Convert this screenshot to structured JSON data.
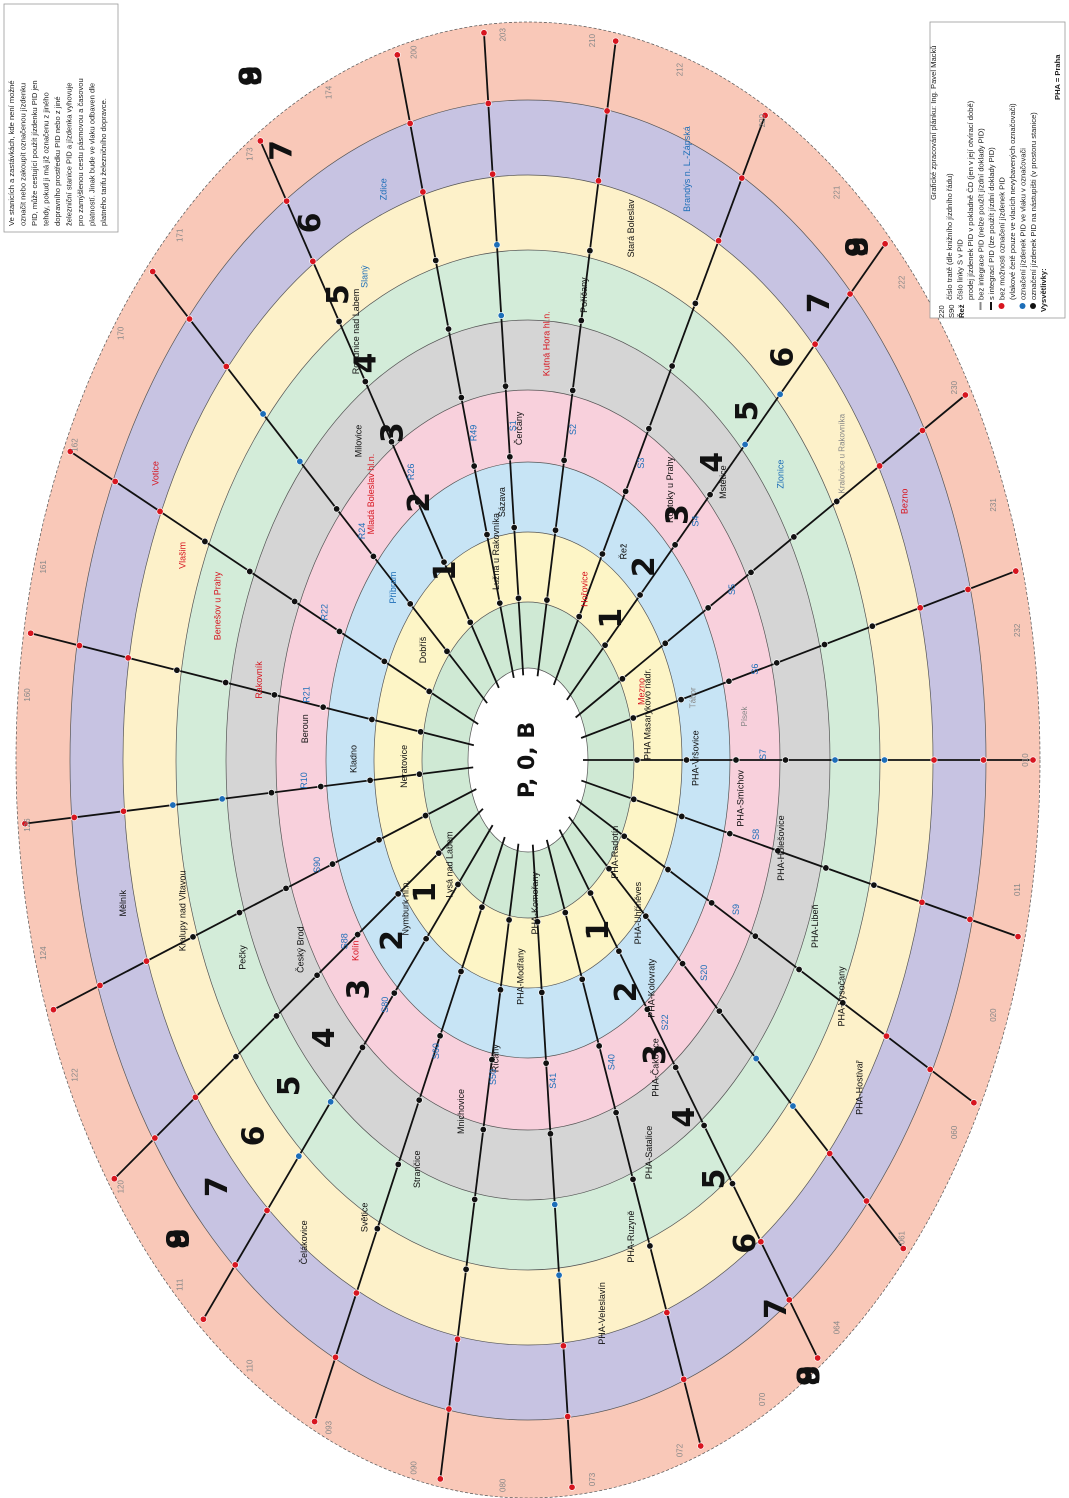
{
  "note_box": {
    "lines": [
      "Ve stanicích a zastávkách, kde není možné",
      "označit nebo zakoupit označenou jízdenku",
      "PID, může cestující použít jízdenku PID jen",
      "tehdy, pokud ji má již označenu z jiného",
      "dopravního prostředku PID nebo z jiné",
      "železniční stanice PID a jízdenka vyhovuje",
      "pro zamýšlenou cestu pásmovou a časovou",
      "platností. Jinak bude ve vlaku odbaven dle",
      "platného tarifu železničního dopravce."
    ]
  },
  "legend": {
    "header": "PHA = Praha",
    "title": "Vysvětlivky:",
    "items": [
      {
        "symbol": "dot-black",
        "text": "označení jízdenek PID na nástupišti (v prostoru stanice)"
      },
      {
        "symbol": "dot-blue",
        "text": "označení jízdenek PID ve vlaku v označovači"
      },
      {
        "symbol": "none",
        "text": "(vlakové četě pouze ve vlacích nevybavených označovači)"
      },
      {
        "symbol": "dot-red",
        "text": "bez možnosti označení jízdenek PID"
      },
      {
        "symbol": "line-black",
        "text": "s integrací PID (lze použít jízdní doklady PID)"
      },
      {
        "symbol": "line-grey",
        "text": "bez integrace PID (nelze použít jízdní doklady PID)"
      },
      {
        "symbol": "text-red",
        "text": "prodej jízdenek PID v pokladně ČD (jen v její otvírací době)"
      },
      {
        "symbol": "text-blue",
        "text": "číslo linky S v PID"
      },
      {
        "symbol": "text-grey",
        "text": "číslo tratě (dle knižního jízdního řádu)"
      }
    ],
    "sample_red": "Řež",
    "sample_blue": "S90",
    "sample_grey": "220",
    "credit": "Grafické zpracování plánku: Ing. Pavel Macků"
  },
  "zones": {
    "center": "P, 0, B",
    "ring_labels": [
      "1",
      "2",
      "3",
      "4",
      "5",
      "6",
      "7",
      "8",
      "9"
    ]
  },
  "colors": {
    "zoneP": "#ffffff",
    "zone0": "#ffffff",
    "zone1": "#cfe9d4",
    "zone2": "#fdf5c6",
    "zone3": "#c7e4f5",
    "zone4": "#f8d0dc",
    "zone5": "#d5d5d5",
    "zone6": "#d3ecd9",
    "zone7": "#fdf1c9",
    "zone8": "#c7c3e2",
    "zone9": "#f9c8b8",
    "red": "#d7151f",
    "blue": "#1d6eb8",
    "black": "#111111",
    "grey": "#888888"
  },
  "stations": [
    {
      "name": "PHA Masarykovo nádr.",
      "color": "black"
    },
    {
      "name": "PHA-Vršovice",
      "color": "black"
    },
    {
      "name": "PHA-Smíchov",
      "color": "black"
    },
    {
      "name": "PHA-Holešovice",
      "color": "black"
    },
    {
      "name": "PHA-Libeň",
      "color": "black"
    },
    {
      "name": "PHA-Vysočany",
      "color": "black"
    },
    {
      "name": "PHA-Hostivař",
      "color": "black"
    },
    {
      "name": "PHA-Radotín",
      "color": "black"
    },
    {
      "name": "PHA-Uhříněves",
      "color": "black"
    },
    {
      "name": "PHA-Kolovraty",
      "color": "black"
    },
    {
      "name": "PHA-Čakovice",
      "color": "black"
    },
    {
      "name": "PHA-Satalice",
      "color": "black"
    },
    {
      "name": "PHA-Ruzyně",
      "color": "black"
    },
    {
      "name": "PHA-Veleslavín",
      "color": "black"
    },
    {
      "name": "PHA-Komořany",
      "color": "black"
    },
    {
      "name": "PHA-Modřany",
      "color": "black"
    },
    {
      "name": "Říčany",
      "color": "black"
    },
    {
      "name": "Mnichovice",
      "color": "black"
    },
    {
      "name": "Strančice",
      "color": "black"
    },
    {
      "name": "Světice",
      "color": "black"
    },
    {
      "name": "Čelákovice",
      "color": "black"
    },
    {
      "name": "Lysá nad Labem",
      "color": "black"
    },
    {
      "name": "Nymburk hl.n.",
      "color": "black"
    },
    {
      "name": "Kolín",
      "color": "red"
    },
    {
      "name": "Český Brod",
      "color": "black"
    },
    {
      "name": "Pečky",
      "color": "black"
    },
    {
      "name": "Kralupy nad Vltavou",
      "color": "black"
    },
    {
      "name": "Mělník",
      "color": "black"
    },
    {
      "name": "Neratovice",
      "color": "black"
    },
    {
      "name": "Kladno",
      "color": "black"
    },
    {
      "name": "Beroun",
      "color": "black"
    },
    {
      "name": "Rakovník",
      "color": "red"
    },
    {
      "name": "Benešov u Prahy",
      "color": "red"
    },
    {
      "name": "Vlašim",
      "color": "red"
    },
    {
      "name": "Votice",
      "color": "red"
    },
    {
      "name": "Dobříš",
      "color": "black"
    },
    {
      "name": "Příbram",
      "color": "blue"
    },
    {
      "name": "Mladá Boleslav hl.n.",
      "color": "red"
    },
    {
      "name": "Milovice",
      "color": "black"
    },
    {
      "name": "Roudnice nad Labem",
      "color": "black"
    },
    {
      "name": "Slaný",
      "color": "blue"
    },
    {
      "name": "Zdice",
      "color": "blue"
    },
    {
      "name": "Lužná u Rakovníka",
      "color": "black"
    },
    {
      "name": "Sázava",
      "color": "black"
    },
    {
      "name": "Čerčany",
      "color": "black"
    },
    {
      "name": "Kutná Hora hl.n.",
      "color": "red"
    },
    {
      "name": "Poříčany",
      "color": "black"
    },
    {
      "name": "Stará Boleslav",
      "color": "black"
    },
    {
      "name": "Brandýs n. L.-Zápská",
      "color": "blue"
    },
    {
      "name": "Hořovice",
      "color": "red"
    },
    {
      "name": "Řež",
      "color": "black"
    },
    {
      "name": "Roztoky u Prahy",
      "color": "black"
    },
    {
      "name": "Mstětice",
      "color": "black"
    },
    {
      "name": "Zlonice",
      "color": "blue"
    },
    {
      "name": "Kralovice u Rakovníka",
      "color": "grey"
    },
    {
      "name": "Bezno",
      "color": "red"
    },
    {
      "name": "Mezno",
      "color": "red"
    },
    {
      "name": "Tábor",
      "color": "grey"
    },
    {
      "name": "Písek",
      "color": "grey"
    }
  ],
  "line_numbers": [
    "S1",
    "S2",
    "S3",
    "S4",
    "S5",
    "S6",
    "S7",
    "S8",
    "S9",
    "S20",
    "S22",
    "S40",
    "S41",
    "S50",
    "S60",
    "S80",
    "S88",
    "S90",
    "R10",
    "R21",
    "R22",
    "R24",
    "R26",
    "R49"
  ],
  "track_numbers": [
    "010",
    "011",
    "020",
    "060",
    "061",
    "064",
    "070",
    "072",
    "073",
    "080",
    "090",
    "093",
    "110",
    "111",
    "120",
    "122",
    "124",
    "126",
    "160",
    "161",
    "162",
    "170",
    "171",
    "173",
    "174",
    "200",
    "203",
    "210",
    "212",
    "220",
    "221",
    "222",
    "230",
    "231",
    "232"
  ]
}
